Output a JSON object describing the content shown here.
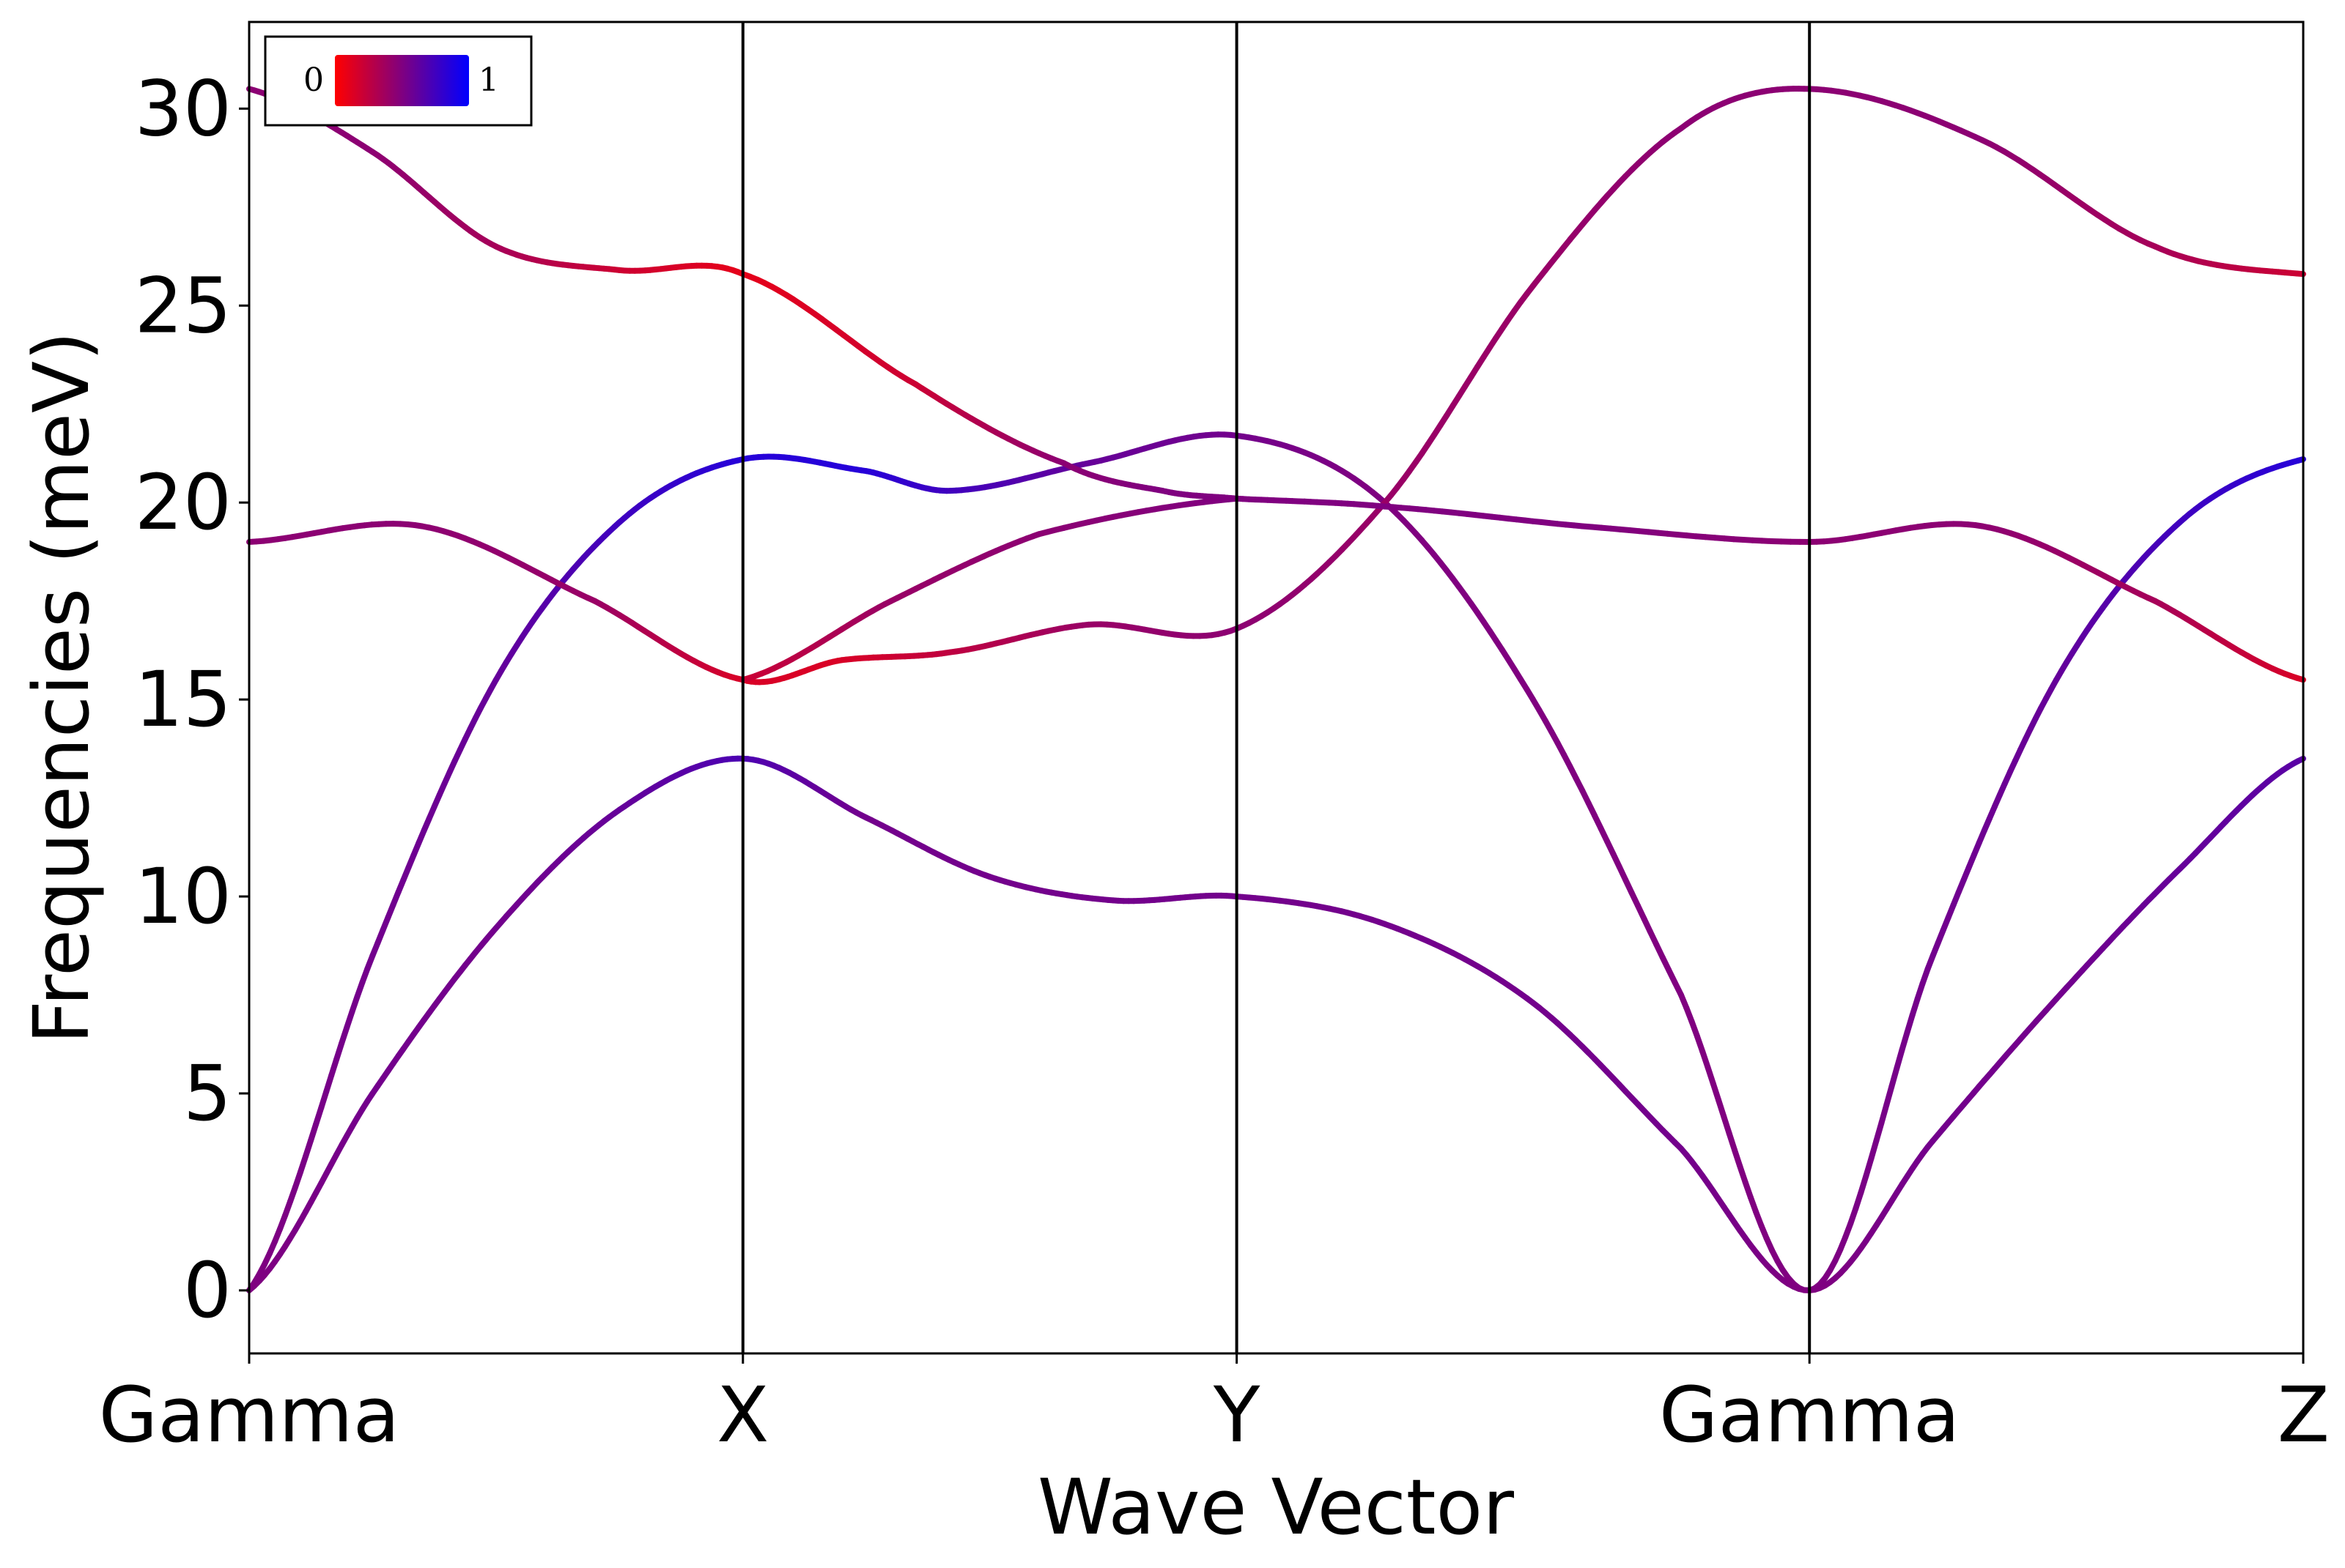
{
  "chart_data": {
    "type": "line",
    "xlabel": "Wave Vector",
    "ylabel": "Frequencies (meV)",
    "ylim": [
      -1.6,
      32.2
    ],
    "y_ticks": [
      0,
      5,
      10,
      15,
      20,
      25,
      30
    ],
    "x_ticks": [
      {
        "label": "Gamma",
        "x": 0.0
      },
      {
        "label": "X",
        "x": 1.0
      },
      {
        "label": "Y",
        "x": 2.0
      },
      {
        "label": "Gamma",
        "x": 3.16
      },
      {
        "label": "Z",
        "x": 4.16
      }
    ],
    "xlim": [
      0,
      4.16
    ],
    "grid": false,
    "legend": {
      "position": "top-left",
      "min_label": "0",
      "max_label": "1",
      "colormap": [
        "#ff0000",
        "#0000ff"
      ]
    },
    "series": [
      {
        "points": [
          [
            0,
            0
          ],
          [
            0.25,
            5
          ],
          [
            0.5,
            9.2
          ],
          [
            0.75,
            12.2
          ],
          [
            1.0,
            13.5
          ],
          [
            1.25,
            12.0
          ],
          [
            1.5,
            10.5
          ],
          [
            1.75,
            9.9
          ],
          [
            2.0,
            10.0
          ],
          [
            2.3,
            9.3
          ],
          [
            2.6,
            7.3
          ],
          [
            2.9,
            3.6
          ],
          [
            3.16,
            0
          ],
          [
            3.41,
            3.8
          ],
          [
            3.66,
            7.4
          ],
          [
            3.91,
            10.7
          ],
          [
            4.16,
            13.5
          ]
        ],
        "weights": [
          0.5,
          0.55,
          0.55,
          0.6,
          0.7,
          0.55,
          0.55,
          0.55,
          0.55,
          0.55,
          0.55,
          0.55,
          0.5,
          0.55,
          0.55,
          0.6,
          0.65
        ]
      },
      {
        "points": [
          [
            0,
            0
          ],
          [
            0.25,
            8.5
          ],
          [
            0.5,
            15.5
          ],
          [
            0.75,
            19.5
          ],
          [
            1.0,
            21.1
          ],
          [
            1.25,
            20.8
          ],
          [
            1.42,
            20.3
          ],
          [
            1.7,
            21.0
          ],
          [
            2.0,
            21.7
          ],
          [
            2.3,
            20.0
          ],
          [
            2.6,
            15.0
          ],
          [
            2.9,
            7.5
          ],
          [
            3.16,
            0
          ],
          [
            3.41,
            8.5
          ],
          [
            3.66,
            15.5
          ],
          [
            3.91,
            19.5
          ],
          [
            4.16,
            21.1
          ]
        ],
        "weights": [
          0.5,
          0.55,
          0.6,
          0.75,
          0.85,
          0.85,
          0.75,
          0.6,
          0.55,
          0.5,
          0.5,
          0.5,
          0.5,
          0.55,
          0.6,
          0.75,
          0.85
        ]
      },
      {
        "points": [
          [
            0,
            19.0
          ],
          [
            0.35,
            19.4
          ],
          [
            0.7,
            17.5
          ],
          [
            1.0,
            15.5
          ],
          [
            1.2,
            16.0
          ],
          [
            1.42,
            16.2
          ],
          [
            1.7,
            16.9
          ],
          [
            2.0,
            16.8
          ],
          [
            2.3,
            20.0
          ],
          [
            2.6,
            25.5
          ],
          [
            2.9,
            29.5
          ],
          [
            3.16,
            30.5
          ],
          [
            3.51,
            29.2
          ],
          [
            3.86,
            26.5
          ],
          [
            4.16,
            25.8
          ]
        ],
        "weights": [
          0.45,
          0.45,
          0.4,
          0.15,
          0.15,
          0.25,
          0.4,
          0.45,
          0.4,
          0.4,
          0.45,
          0.45,
          0.45,
          0.35,
          0.2
        ]
      },
      {
        "points": [
          [
            0,
            30.5
          ],
          [
            0.25,
            28.9
          ],
          [
            0.5,
            26.5
          ],
          [
            0.75,
            25.9
          ],
          [
            1.0,
            25.8
          ],
          [
            1.35,
            23.0
          ],
          [
            1.65,
            21.0
          ],
          [
            1.85,
            20.3
          ],
          [
            2.0,
            20.1
          ],
          [
            2.3,
            19.9
          ],
          [
            2.7,
            19.4
          ],
          [
            3.16,
            19.0
          ],
          [
            3.51,
            19.4
          ],
          [
            3.86,
            17.5
          ],
          [
            4.16,
            15.5
          ]
        ],
        "weights": [
          0.45,
          0.45,
          0.35,
          0.2,
          0.1,
          0.2,
          0.45,
          0.5,
          0.5,
          0.5,
          0.5,
          0.45,
          0.45,
          0.35,
          0.15
        ]
      },
      {
        "points": [
          [
            1.0,
            15.5
          ],
          [
            1.3,
            17.5
          ],
          [
            1.6,
            19.2
          ],
          [
            2.0,
            20.1
          ]
        ],
        "weights": [
          0.2,
          0.4,
          0.45,
          0.5
        ]
      }
    ]
  }
}
